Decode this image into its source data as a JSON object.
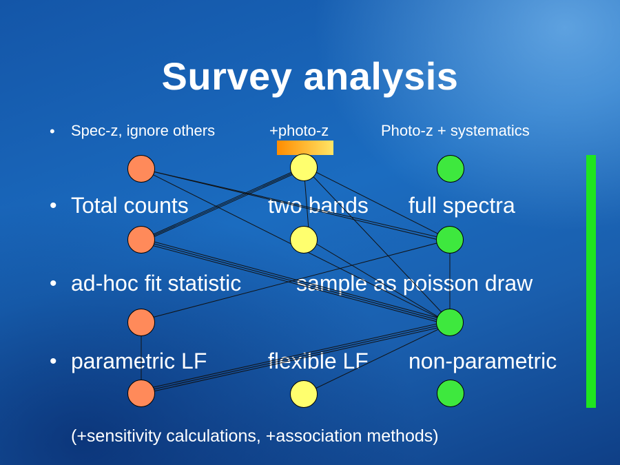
{
  "title": "Survey analysis",
  "header_row": {
    "bullet": "•",
    "col1": "Spec-z, ignore others",
    "col2": "+photo-z",
    "col3": "Photo-z + systematics"
  },
  "rows": [
    {
      "bullet": "•",
      "col1": "Total counts",
      "col2": "two bands",
      "col3": "full spectra"
    },
    {
      "bullet": "•",
      "col1": "ad-hoc fit statistic",
      "col2": "sample as poisson draw"
    },
    {
      "bullet": "•",
      "col1": "parametric LF",
      "col2": "flexible LF",
      "col3": "non-parametric"
    }
  ],
  "footnote": "(+sensitivity calculations, +association methods)",
  "colors": {
    "col1_node": "#ff8a5a",
    "col2_node": "#ffff6e",
    "col3_node": "#3ee83e",
    "side_bar": "#1fe51f",
    "gradient_bar": [
      "#ff8c00",
      "#ffe566"
    ]
  }
}
